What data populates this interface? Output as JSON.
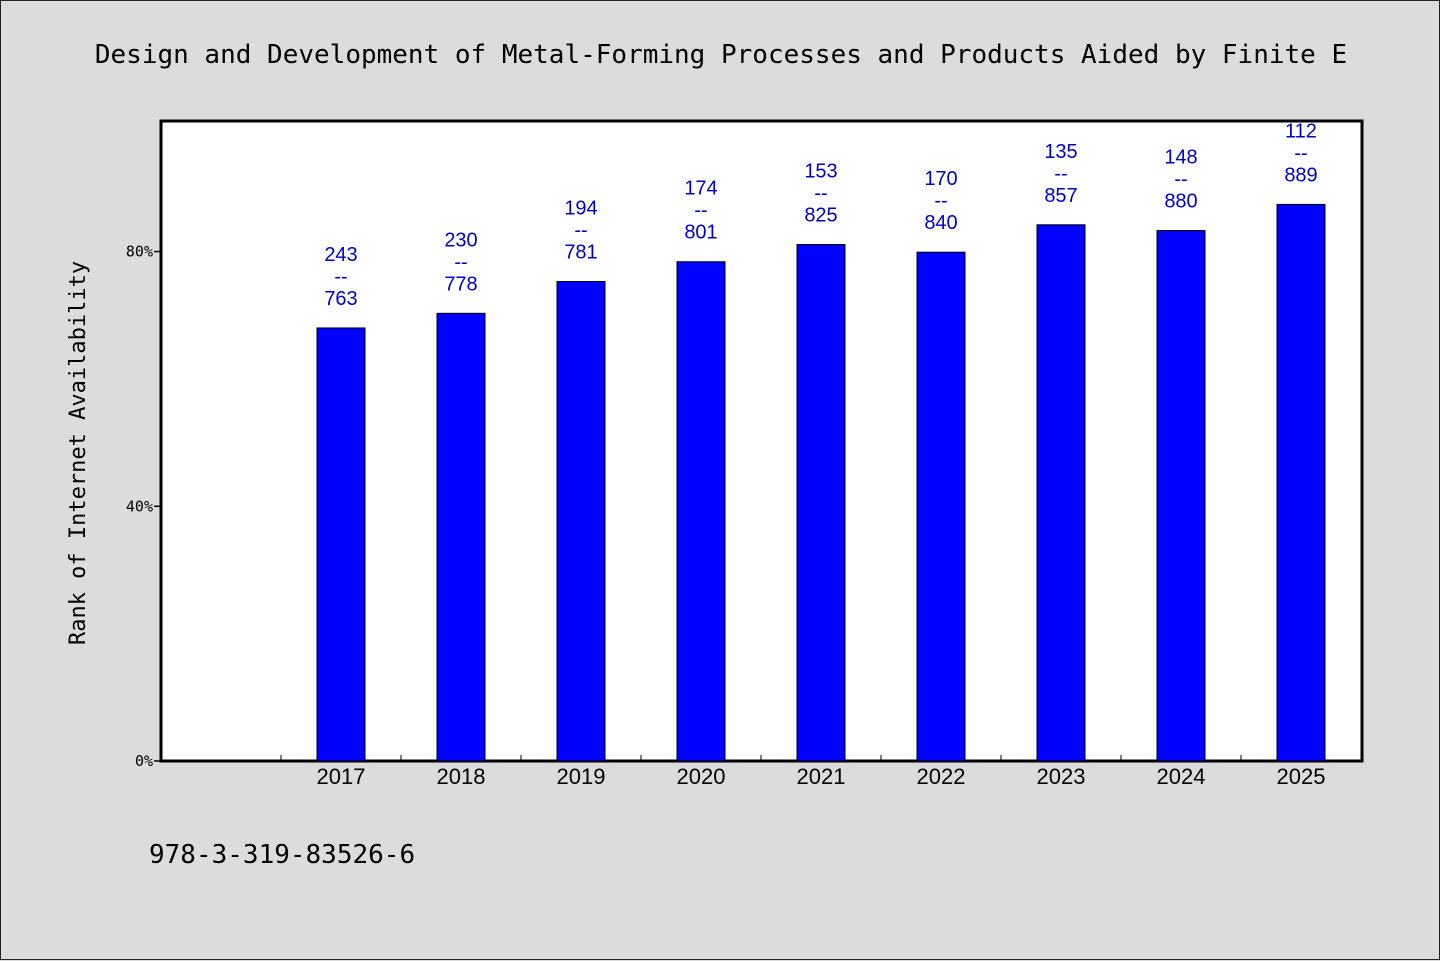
{
  "chart_data": {
    "type": "bar",
    "title": "Design and Development of Metal-Forming Processes and Products Aided by Finite E",
    "xlabel": "",
    "ylabel": "Rank of Internet Availability",
    "categories": [
      "2017",
      "2018",
      "2019",
      "2020",
      "2021",
      "2022",
      "2023",
      "2024",
      "2025"
    ],
    "series": [
      {
        "values": [
          68,
          70.3,
          75.3,
          78.4,
          81.1,
          79.9,
          84.2,
          83.3,
          87.4
        ]
      }
    ],
    "data_labels": [
      [
        "243",
        "--",
        "763"
      ],
      [
        "230",
        "--",
        "778"
      ],
      [
        "194",
        "--",
        "781"
      ],
      [
        "174",
        "--",
        "801"
      ],
      [
        "153",
        "--",
        "825"
      ],
      [
        "170",
        "--",
        "840"
      ],
      [
        "135",
        "--",
        "857"
      ],
      [
        "148",
        "--",
        "880"
      ],
      [
        "112",
        "--",
        "889"
      ]
    ],
    "yticks": [
      {
        "value": 0,
        "label": "0%"
      },
      {
        "value": 40,
        "label": "40%"
      },
      {
        "value": 80,
        "label": "80%"
      }
    ],
    "ylim": [
      0,
      100.5
    ],
    "bar_color": "#0000ff",
    "label_color": "#0000cc",
    "grid": false,
    "legend": "none"
  },
  "footer": {
    "isbn": "978-3-319-83526-6"
  }
}
